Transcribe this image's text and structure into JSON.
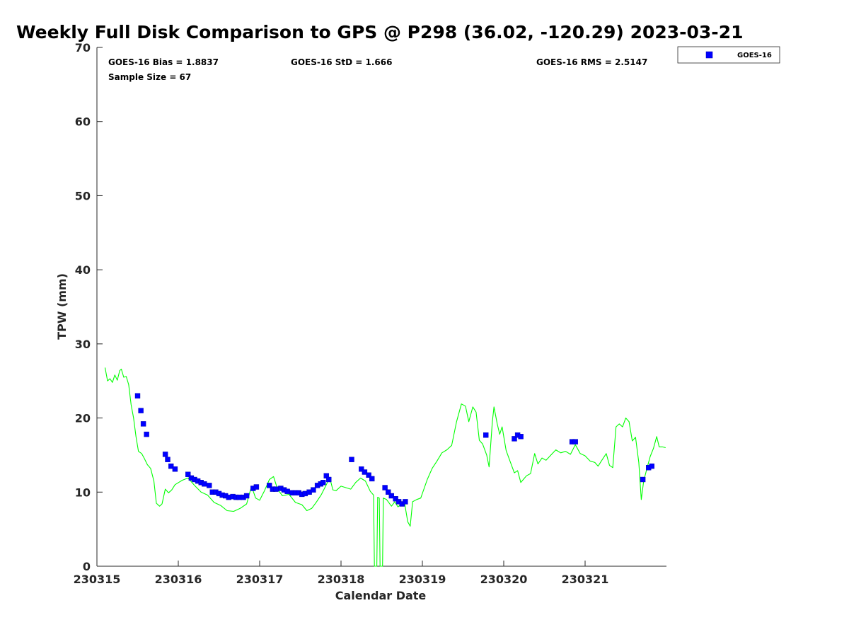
{
  "chart_data": {
    "type": "scatter",
    "title": "Weekly Full Disk Comparison to GPS @ P298 (36.02, -120.29) 2023-03-21",
    "xlabel": "Calendar Date",
    "ylabel": "TPW (mm)",
    "xlim": [
      230315,
      230322
    ],
    "ylim": [
      0,
      70
    ],
    "x_ticks": [
      230315,
      230316,
      230317,
      230318,
      230319,
      230320,
      230321
    ],
    "x_tick_labels": [
      "230315",
      "230316",
      "230317",
      "230318",
      "230319",
      "230320",
      "230321"
    ],
    "y_ticks": [
      0,
      10,
      20,
      30,
      40,
      50,
      60,
      70
    ],
    "y_tick_labels": [
      "0",
      "10",
      "20",
      "30",
      "40",
      "50",
      "60",
      "70"
    ],
    "grid": false,
    "legend_position": "top-right-outside",
    "stats": {
      "bias": "GOES-16 Bias = 1.8837",
      "std": "GOES-16 StD = 1.666",
      "rms": "GOES-16 RMS = 2.5147",
      "sample_size": "Sample Size = 67"
    },
    "series": [
      {
        "name": "GOES-16",
        "type": "scatter",
        "marker": "square",
        "color": "#0000ff",
        "points": [
          [
            230315.5,
            23.0
          ],
          [
            230315.54,
            21.0
          ],
          [
            230315.57,
            19.2
          ],
          [
            230315.61,
            17.8
          ],
          [
            230315.84,
            15.1
          ],
          [
            230315.87,
            14.4
          ],
          [
            230315.91,
            13.5
          ],
          [
            230315.96,
            13.1
          ],
          [
            230316.12,
            12.4
          ],
          [
            230316.16,
            11.9
          ],
          [
            230316.2,
            11.7
          ],
          [
            230316.24,
            11.5
          ],
          [
            230316.28,
            11.3
          ],
          [
            230316.32,
            11.1
          ],
          [
            230316.38,
            10.9
          ],
          [
            230316.42,
            10.0
          ],
          [
            230316.46,
            10.0
          ],
          [
            230316.5,
            9.8
          ],
          [
            230316.54,
            9.6
          ],
          [
            230316.58,
            9.5
          ],
          [
            230316.62,
            9.3
          ],
          [
            230316.67,
            9.4
          ],
          [
            230316.71,
            9.3
          ],
          [
            230316.75,
            9.3
          ],
          [
            230316.8,
            9.3
          ],
          [
            230316.84,
            9.5
          ],
          [
            230316.92,
            10.5
          ],
          [
            230316.96,
            10.7
          ],
          [
            230317.12,
            10.9
          ],
          [
            230317.16,
            10.4
          ],
          [
            230317.2,
            10.4
          ],
          [
            230317.26,
            10.5
          ],
          [
            230317.3,
            10.3
          ],
          [
            230317.34,
            10.1
          ],
          [
            230317.4,
            9.9
          ],
          [
            230317.44,
            9.9
          ],
          [
            230317.48,
            9.9
          ],
          [
            230317.52,
            9.7
          ],
          [
            230317.56,
            9.8
          ],
          [
            230317.61,
            10.0
          ],
          [
            230317.66,
            10.3
          ],
          [
            230317.71,
            10.9
          ],
          [
            230317.75,
            11.1
          ],
          [
            230317.78,
            11.3
          ],
          [
            230317.82,
            12.2
          ],
          [
            230317.85,
            11.7
          ],
          [
            230318.13,
            14.4
          ],
          [
            230318.25,
            13.1
          ],
          [
            230318.29,
            12.7
          ],
          [
            230318.34,
            12.3
          ],
          [
            230318.38,
            11.8
          ],
          [
            230318.54,
            10.6
          ],
          [
            230318.58,
            10.0
          ],
          [
            230318.62,
            9.5
          ],
          [
            230318.67,
            9.1
          ],
          [
            230318.71,
            8.7
          ],
          [
            230318.75,
            8.4
          ],
          [
            230318.79,
            8.7
          ],
          [
            230319.78,
            17.7
          ],
          [
            230320.13,
            17.2
          ],
          [
            230320.17,
            17.7
          ],
          [
            230320.21,
            17.5
          ],
          [
            230320.84,
            16.8
          ],
          [
            230320.88,
            16.8
          ],
          [
            230321.71,
            11.7
          ],
          [
            230321.78,
            13.3
          ],
          [
            230321.82,
            13.5
          ]
        ]
      },
      {
        "type": "line",
        "color": "#00ff00",
        "points": [
          [
            230315.1,
            26.8
          ],
          [
            230315.13,
            25.0
          ],
          [
            230315.16,
            25.3
          ],
          [
            230315.19,
            24.8
          ],
          [
            230315.22,
            25.8
          ],
          [
            230315.25,
            25.1
          ],
          [
            230315.28,
            26.4
          ],
          [
            230315.3,
            26.6
          ],
          [
            230315.33,
            25.5
          ],
          [
            230315.36,
            25.6
          ],
          [
            230315.39,
            24.5
          ],
          [
            230315.42,
            21.8
          ],
          [
            230315.45,
            20.0
          ],
          [
            230315.48,
            17.5
          ],
          [
            230315.51,
            15.5
          ],
          [
            230315.55,
            15.2
          ],
          [
            230315.58,
            14.6
          ],
          [
            230315.62,
            13.7
          ],
          [
            230315.66,
            13.2
          ],
          [
            230315.7,
            11.5
          ],
          [
            230315.73,
            8.5
          ],
          [
            230315.77,
            8.1
          ],
          [
            230315.8,
            8.4
          ],
          [
            230315.84,
            10.4
          ],
          [
            230315.88,
            9.9
          ],
          [
            230315.92,
            10.3
          ],
          [
            230315.96,
            11.0
          ],
          [
            230316.05,
            11.6
          ],
          [
            230316.12,
            11.9
          ],
          [
            230316.2,
            10.9
          ],
          [
            230316.28,
            10.0
          ],
          [
            230316.36,
            9.6
          ],
          [
            230316.44,
            8.6
          ],
          [
            230316.52,
            8.2
          ],
          [
            230316.6,
            7.5
          ],
          [
            230316.68,
            7.4
          ],
          [
            230316.76,
            7.8
          ],
          [
            230316.84,
            8.4
          ],
          [
            230316.9,
            10.8
          ],
          [
            230316.95,
            9.2
          ],
          [
            230317.0,
            8.9
          ],
          [
            230317.06,
            10.2
          ],
          [
            230317.12,
            11.7
          ],
          [
            230317.17,
            12.1
          ],
          [
            230317.22,
            10.4
          ],
          [
            230317.28,
            9.5
          ],
          [
            230317.36,
            9.7
          ],
          [
            230317.44,
            8.6
          ],
          [
            230317.52,
            8.3
          ],
          [
            230317.58,
            7.5
          ],
          [
            230317.64,
            7.8
          ],
          [
            230317.7,
            8.7
          ],
          [
            230317.76,
            9.7
          ],
          [
            230317.82,
            11.0
          ],
          [
            230317.86,
            12.0
          ],
          [
            230317.9,
            10.3
          ],
          [
            230317.94,
            10.2
          ],
          [
            230318.0,
            10.8
          ],
          [
            230318.12,
            10.4
          ],
          [
            230318.18,
            11.3
          ],
          [
            230318.24,
            11.9
          ],
          [
            230318.3,
            11.5
          ],
          [
            230318.36,
            10.1
          ],
          [
            230318.4,
            9.6
          ],
          [
            230318.41,
            0.0
          ],
          [
            230318.44,
            0.0
          ],
          [
            230318.45,
            9.3
          ],
          [
            230318.47,
            9.2
          ],
          [
            230318.48,
            0.0
          ],
          [
            230318.51,
            0.0
          ],
          [
            230318.52,
            9.2
          ],
          [
            230318.56,
            9.0
          ],
          [
            230318.62,
            8.1
          ],
          [
            230318.66,
            8.7
          ],
          [
            230318.7,
            8.0
          ],
          [
            230318.74,
            8.4
          ],
          [
            230318.78,
            8.6
          ],
          [
            230318.82,
            6.0
          ],
          [
            230318.85,
            5.4
          ],
          [
            230318.88,
            8.7
          ],
          [
            230318.93,
            9.0
          ],
          [
            230318.98,
            9.2
          ],
          [
            230319.06,
            11.7
          ],
          [
            230319.12,
            13.2
          ],
          [
            230319.18,
            14.2
          ],
          [
            230319.24,
            15.3
          ],
          [
            230319.3,
            15.7
          ],
          [
            230319.36,
            16.3
          ],
          [
            230319.42,
            19.5
          ],
          [
            230319.48,
            21.9
          ],
          [
            230319.53,
            21.6
          ],
          [
            230319.57,
            19.5
          ],
          [
            230319.62,
            21.5
          ],
          [
            230319.66,
            20.8
          ],
          [
            230319.7,
            17.0
          ],
          [
            230319.74,
            16.5
          ],
          [
            230319.79,
            15.0
          ],
          [
            230319.82,
            13.4
          ],
          [
            230319.86,
            19.5
          ],
          [
            230319.88,
            21.5
          ],
          [
            230319.92,
            19.2
          ],
          [
            230319.95,
            17.8
          ],
          [
            230319.98,
            18.8
          ],
          [
            230320.03,
            15.6
          ],
          [
            230320.08,
            14.1
          ],
          [
            230320.13,
            12.6
          ],
          [
            230320.17,
            12.9
          ],
          [
            230320.21,
            11.3
          ],
          [
            230320.24,
            11.7
          ],
          [
            230320.28,
            12.2
          ],
          [
            230320.33,
            12.5
          ],
          [
            230320.38,
            15.2
          ],
          [
            230320.42,
            13.8
          ],
          [
            230320.47,
            14.6
          ],
          [
            230320.52,
            14.3
          ],
          [
            230320.58,
            15.0
          ],
          [
            230320.64,
            15.7
          ],
          [
            230320.7,
            15.3
          ],
          [
            230320.76,
            15.5
          ],
          [
            230320.82,
            15.1
          ],
          [
            230320.88,
            16.4
          ],
          [
            230320.94,
            15.2
          ],
          [
            230321.0,
            14.9
          ],
          [
            230321.06,
            14.2
          ],
          [
            230321.12,
            14.0
          ],
          [
            230321.16,
            13.5
          ],
          [
            230321.2,
            14.2
          ],
          [
            230321.26,
            15.2
          ],
          [
            230321.3,
            13.6
          ],
          [
            230321.34,
            13.3
          ],
          [
            230321.38,
            18.8
          ],
          [
            230321.42,
            19.2
          ],
          [
            230321.46,
            18.8
          ],
          [
            230321.5,
            20.0
          ],
          [
            230321.54,
            19.5
          ],
          [
            230321.58,
            16.9
          ],
          [
            230321.62,
            17.4
          ],
          [
            230321.66,
            14.0
          ],
          [
            230321.69,
            9.0
          ],
          [
            230321.72,
            11.5
          ],
          [
            230321.76,
            13.2
          ],
          [
            230321.8,
            14.8
          ],
          [
            230321.84,
            15.9
          ],
          [
            230321.88,
            17.5
          ],
          [
            230321.91,
            16.1
          ],
          [
            230321.95,
            16.1
          ],
          [
            230321.99,
            16.0
          ]
        ]
      }
    ]
  }
}
